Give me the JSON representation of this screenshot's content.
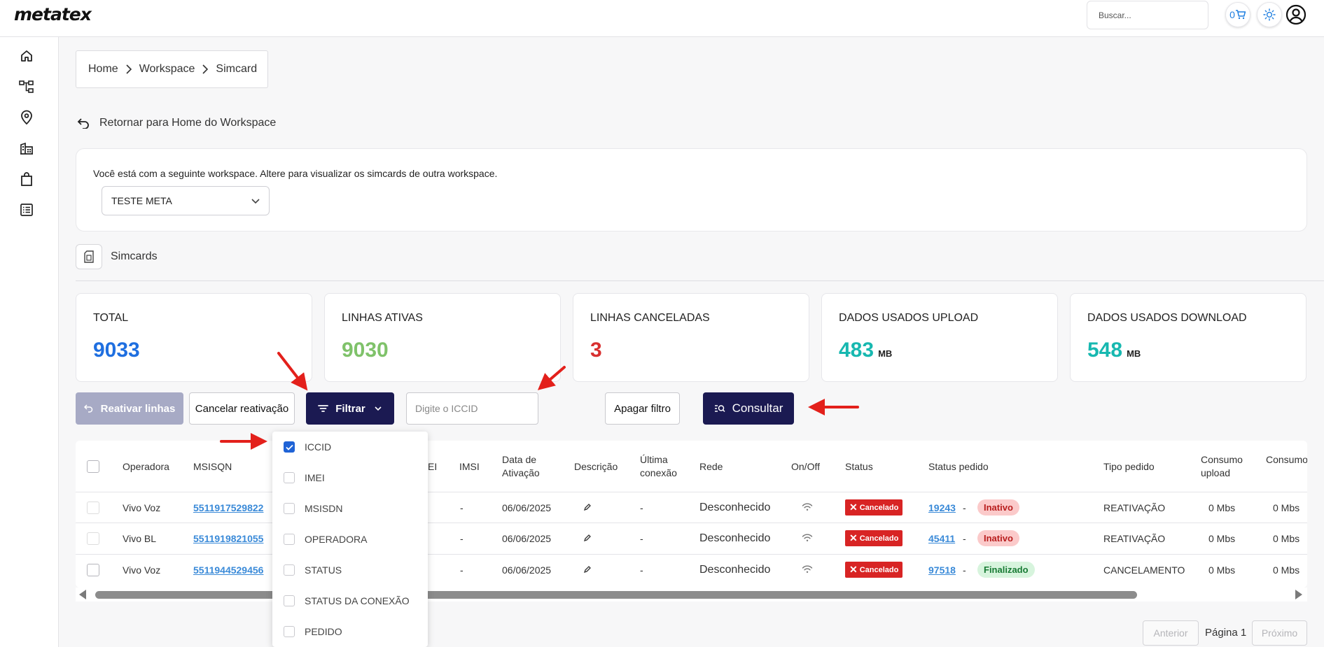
{
  "header": {
    "logo": "metatex",
    "search_placeholder": "Buscar...",
    "cart_count": "0",
    "icons": [
      "cart-icon",
      "sun-icon",
      "user-circle-icon"
    ]
  },
  "sidebar": {
    "items": [
      {
        "name": "home-icon"
      },
      {
        "name": "hierarchy-icon"
      },
      {
        "name": "location-pin-icon"
      },
      {
        "name": "buildings-icon"
      },
      {
        "name": "shopping-bag-icon"
      },
      {
        "name": "list-icon"
      }
    ]
  },
  "breadcrumb": [
    "Home",
    "Workspace",
    "Simcard"
  ],
  "back_link": "Retornar para Home do Workspace",
  "workspace": {
    "text": "Você está com a seguinte workspace. Altere para visualizar os simcards de outra workspace.",
    "selected": "TESTE META"
  },
  "section_title": "Simcards",
  "stats": [
    {
      "label": "TOTAL",
      "value": "9033",
      "unit": "",
      "color": "#1f6fe0"
    },
    {
      "label": "LINHAS ATIVAS",
      "value": "9030",
      "unit": "",
      "color": "#7fc26a"
    },
    {
      "label": "LINHAS CANCELADAS",
      "value": "3",
      "unit": "",
      "color": "#d83030"
    },
    {
      "label": "DADOS USADOS UPLOAD",
      "value": "483",
      "unit": "MB",
      "color": "#17b8b0"
    },
    {
      "label": "DADOS USADOS DOWNLOAD",
      "value": "548",
      "unit": "MB",
      "color": "#17b8b0"
    }
  ],
  "toolbar": {
    "reativar": "Reativar linhas",
    "cancelar": "Cancelar reativação",
    "filtrar": "Filtrar",
    "iccid_placeholder": "Digite o ICCID",
    "apagar": "Apagar filtro",
    "consultar": "Consultar"
  },
  "table": {
    "headers": {
      "operadora": "Operadora",
      "msisqn": "MSISQN",
      "imei_partial": "EI",
      "imsi": "IMSI",
      "data_ativacao": "Data de Ativação",
      "descricao": "Descrição",
      "ultima_conexao": "Última conexão",
      "rede": "Rede",
      "onoff": "On/Off",
      "status": "Status",
      "status_pedido": "Status pedido",
      "tipo_pedido": "Tipo pedido",
      "consumo_upload": "Consumo upload",
      "consumo_download": "Consumo downloa"
    },
    "rows": [
      {
        "operadora": "Vivo Voz",
        "msisqn": "5511917529822",
        "imsi": "-",
        "data": "06/06/2025",
        "ultima": "-",
        "rede": "Desconhecido",
        "status": "Cancelado",
        "pedido": "19243",
        "sep": "-",
        "pedido_status": "Inativo",
        "tipo": "REATIVAÇÃO",
        "upload": "0 Mbs",
        "download": "0 Mbs"
      },
      {
        "operadora": "Vivo BL",
        "msisqn": "5511919821055",
        "imsi": "-",
        "data": "06/06/2025",
        "ultima": "-",
        "rede": "Desconhecido",
        "status": "Cancelado",
        "pedido": "45411",
        "sep": "-",
        "pedido_status": "Inativo",
        "tipo": "REATIVAÇÃO",
        "upload": "0 Mbs",
        "download": "0 Mbs"
      },
      {
        "operadora": "Vivo Voz",
        "msisqn": "5511944529456",
        "imsi": "-",
        "data": "06/06/2025",
        "ultima": "-",
        "rede": "Desconhecido",
        "status": "Cancelado",
        "pedido": "97518",
        "sep": "-",
        "pedido_status": "Finalizado",
        "tipo": "CANCELAMENTO",
        "upload": "0 Mbs",
        "download": "0 Mbs"
      }
    ]
  },
  "filter_dropdown": [
    {
      "label": "ICCID",
      "checked": true
    },
    {
      "label": "IMEI",
      "checked": false
    },
    {
      "label": "MSISDN",
      "checked": false
    },
    {
      "label": "OPERADORA",
      "checked": false
    },
    {
      "label": "STATUS",
      "checked": false
    },
    {
      "label": "STATUS DA CONEXÃO",
      "checked": false
    },
    {
      "label": "PEDIDO",
      "checked": false
    }
  ],
  "pagination": {
    "prev": "Anterior",
    "page": "Página 1",
    "next": "Próximo"
  },
  "colors": {
    "primary": "#1b1a52",
    "link": "#3a8ad8",
    "danger": "#d82424",
    "annotation": "#e3201b"
  }
}
